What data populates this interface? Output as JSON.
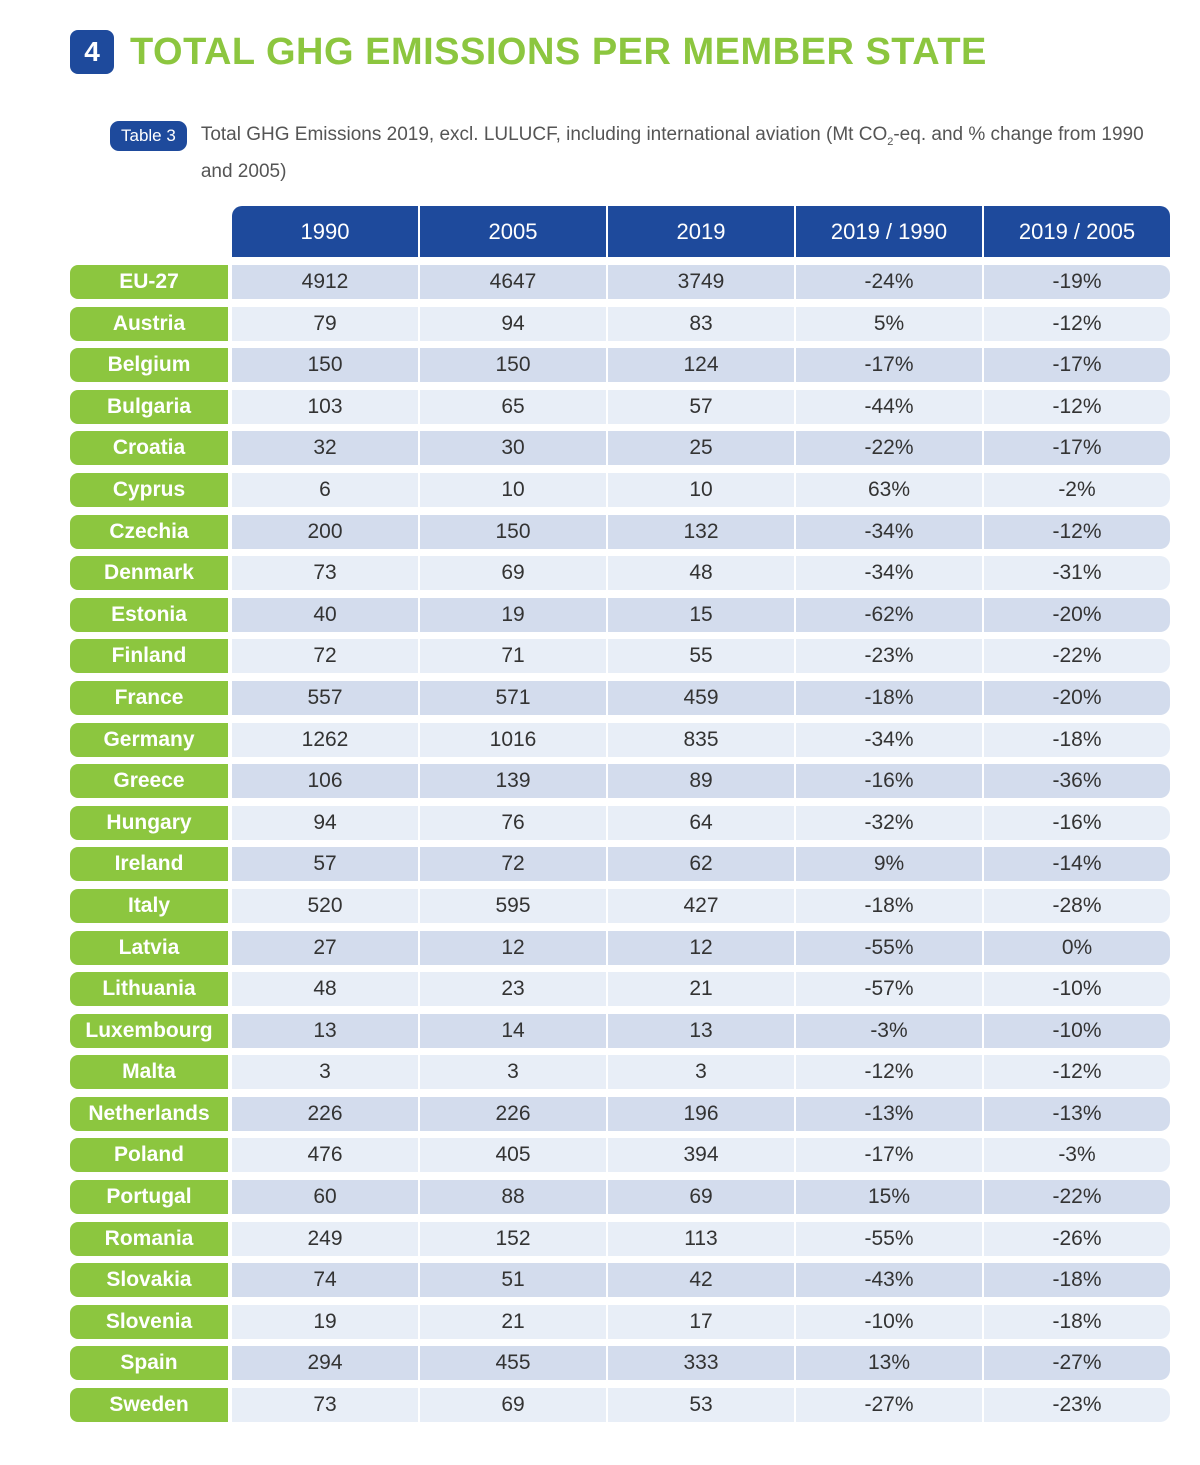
{
  "section": {
    "number": "4",
    "title": "TOTAL GHG EMISSIONS PER MEMBER STATE"
  },
  "caption": {
    "badge": "Table 3",
    "text_before": "Total GHG Emissions 2019, excl. LULUCF, including international aviation (Mt CO",
    "subscript": "2",
    "text_after": "-eq. and % change from 1990 and 2005)"
  },
  "columns": [
    "1990",
    "2005",
    "2019",
    "2019 / 1990",
    "2019 / 2005"
  ],
  "rows": [
    [
      "EU-27",
      "4912",
      "4647",
      "3749",
      "-24%",
      "-19%"
    ],
    [
      "Austria",
      "79",
      "94",
      "83",
      "5%",
      "-12%"
    ],
    [
      "Belgium",
      "150",
      "150",
      "124",
      "-17%",
      "-17%"
    ],
    [
      "Bulgaria",
      "103",
      "65",
      "57",
      "-44%",
      "-12%"
    ],
    [
      "Croatia",
      "32",
      "30",
      "25",
      "-22%",
      "-17%"
    ],
    [
      "Cyprus",
      "6",
      "10",
      "10",
      "63%",
      "-2%"
    ],
    [
      "Czechia",
      "200",
      "150",
      "132",
      "-34%",
      "-12%"
    ],
    [
      "Denmark",
      "73",
      "69",
      "48",
      "-34%",
      "-31%"
    ],
    [
      "Estonia",
      "40",
      "19",
      "15",
      "-62%",
      "-20%"
    ],
    [
      "Finland",
      "72",
      "71",
      "55",
      "-23%",
      "-22%"
    ],
    [
      "France",
      "557",
      "571",
      "459",
      "-18%",
      "-20%"
    ],
    [
      "Germany",
      "1262",
      "1016",
      "835",
      "-34%",
      "-18%"
    ],
    [
      "Greece",
      "106",
      "139",
      "89",
      "-16%",
      "-36%"
    ],
    [
      "Hungary",
      "94",
      "76",
      "64",
      "-32%",
      "-16%"
    ],
    [
      "Ireland",
      "57",
      "72",
      "62",
      "9%",
      "-14%"
    ],
    [
      "Italy",
      "520",
      "595",
      "427",
      "-18%",
      "-28%"
    ],
    [
      "Latvia",
      "27",
      "12",
      "12",
      "-55%",
      "0%"
    ],
    [
      "Lithuania",
      "48",
      "23",
      "21",
      "-57%",
      "-10%"
    ],
    [
      "Luxembourg",
      "13",
      "14",
      "13",
      "-3%",
      "-10%"
    ],
    [
      "Malta",
      "3",
      "3",
      "3",
      "-12%",
      "-12%"
    ],
    [
      "Netherlands",
      "226",
      "226",
      "196",
      "-13%",
      "-13%"
    ],
    [
      "Poland",
      "476",
      "405",
      "394",
      "-17%",
      "-3%"
    ],
    [
      "Portugal",
      "60",
      "88",
      "69",
      "15%",
      "-22%"
    ],
    [
      "Romania",
      "249",
      "152",
      "113",
      "-55%",
      "-26%"
    ],
    [
      "Slovakia",
      "74",
      "51",
      "42",
      "-43%",
      "-18%"
    ],
    [
      "Slovenia",
      "19",
      "21",
      "17",
      "-10%",
      "-18%"
    ],
    [
      "Spain",
      "294",
      "455",
      "333",
      "13%",
      "-27%"
    ],
    [
      "Sweden",
      "73",
      "69",
      "53",
      "-27%",
      "-23%"
    ]
  ],
  "colors": {
    "blue": "#1e4a9c",
    "green": "#8cc63f",
    "row_dark": "#d3dced",
    "row_light": "#e8eef7"
  }
}
